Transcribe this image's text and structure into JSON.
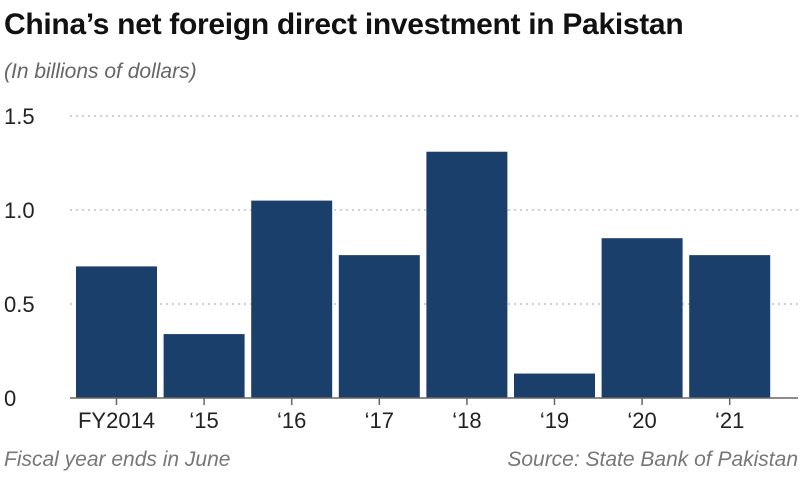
{
  "chart_data": {
    "type": "bar",
    "title": "China’s net foreign direct investment in Pakistan",
    "subtitle": "(In billions of dollars)",
    "categories": [
      "FY2014",
      "‘15",
      "‘16",
      "‘17",
      "‘18",
      "‘19",
      "‘20",
      "‘21"
    ],
    "values": [
      0.7,
      0.34,
      1.05,
      0.76,
      1.31,
      0.13,
      0.85,
      0.76
    ],
    "ylim": [
      0,
      1.5
    ],
    "yticks": [
      0,
      0.5,
      1.0,
      1.5
    ],
    "ytick_labels": [
      "0",
      "0.5",
      "1.0",
      "1.5"
    ],
    "grid": "horizontal dotted",
    "bar_color": "#1b3f6b",
    "footnote": "Fiscal year ends in June",
    "source": "Source: State Bank of Pakistan"
  }
}
